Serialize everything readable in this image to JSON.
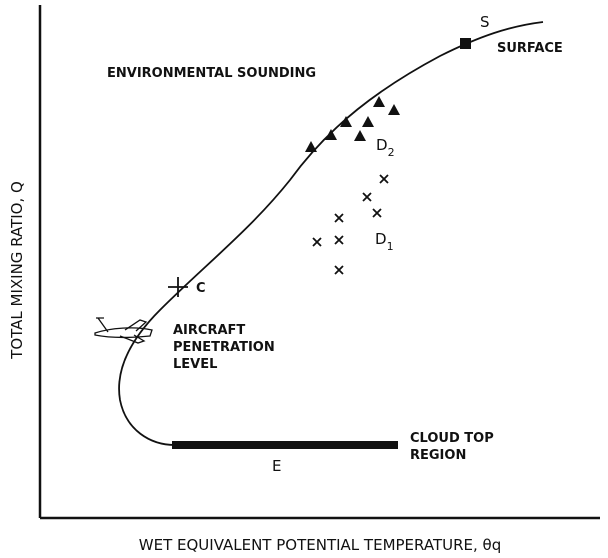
{
  "title": "ENVIRONMENTAL SOUNDING",
  "x_axis_label": "WET EQUIVALENT POTENTIAL TEMPERATURE, θq",
  "y_axis_label": "TOTAL MIXING RATIO, Q",
  "labels": {
    "surface_point": "S",
    "surface": "SURFACE",
    "d2": {
      "letter": "D",
      "subscript": "2"
    },
    "d1": {
      "letter": "D",
      "subscript": "1"
    },
    "c": "C",
    "aircraft": [
      "AIRCRAFT",
      "PENETRATION",
      "LEVEL"
    ],
    "cloud_top": [
      "CLOUD TOP",
      "REGION"
    ],
    "e": "E"
  }
}
